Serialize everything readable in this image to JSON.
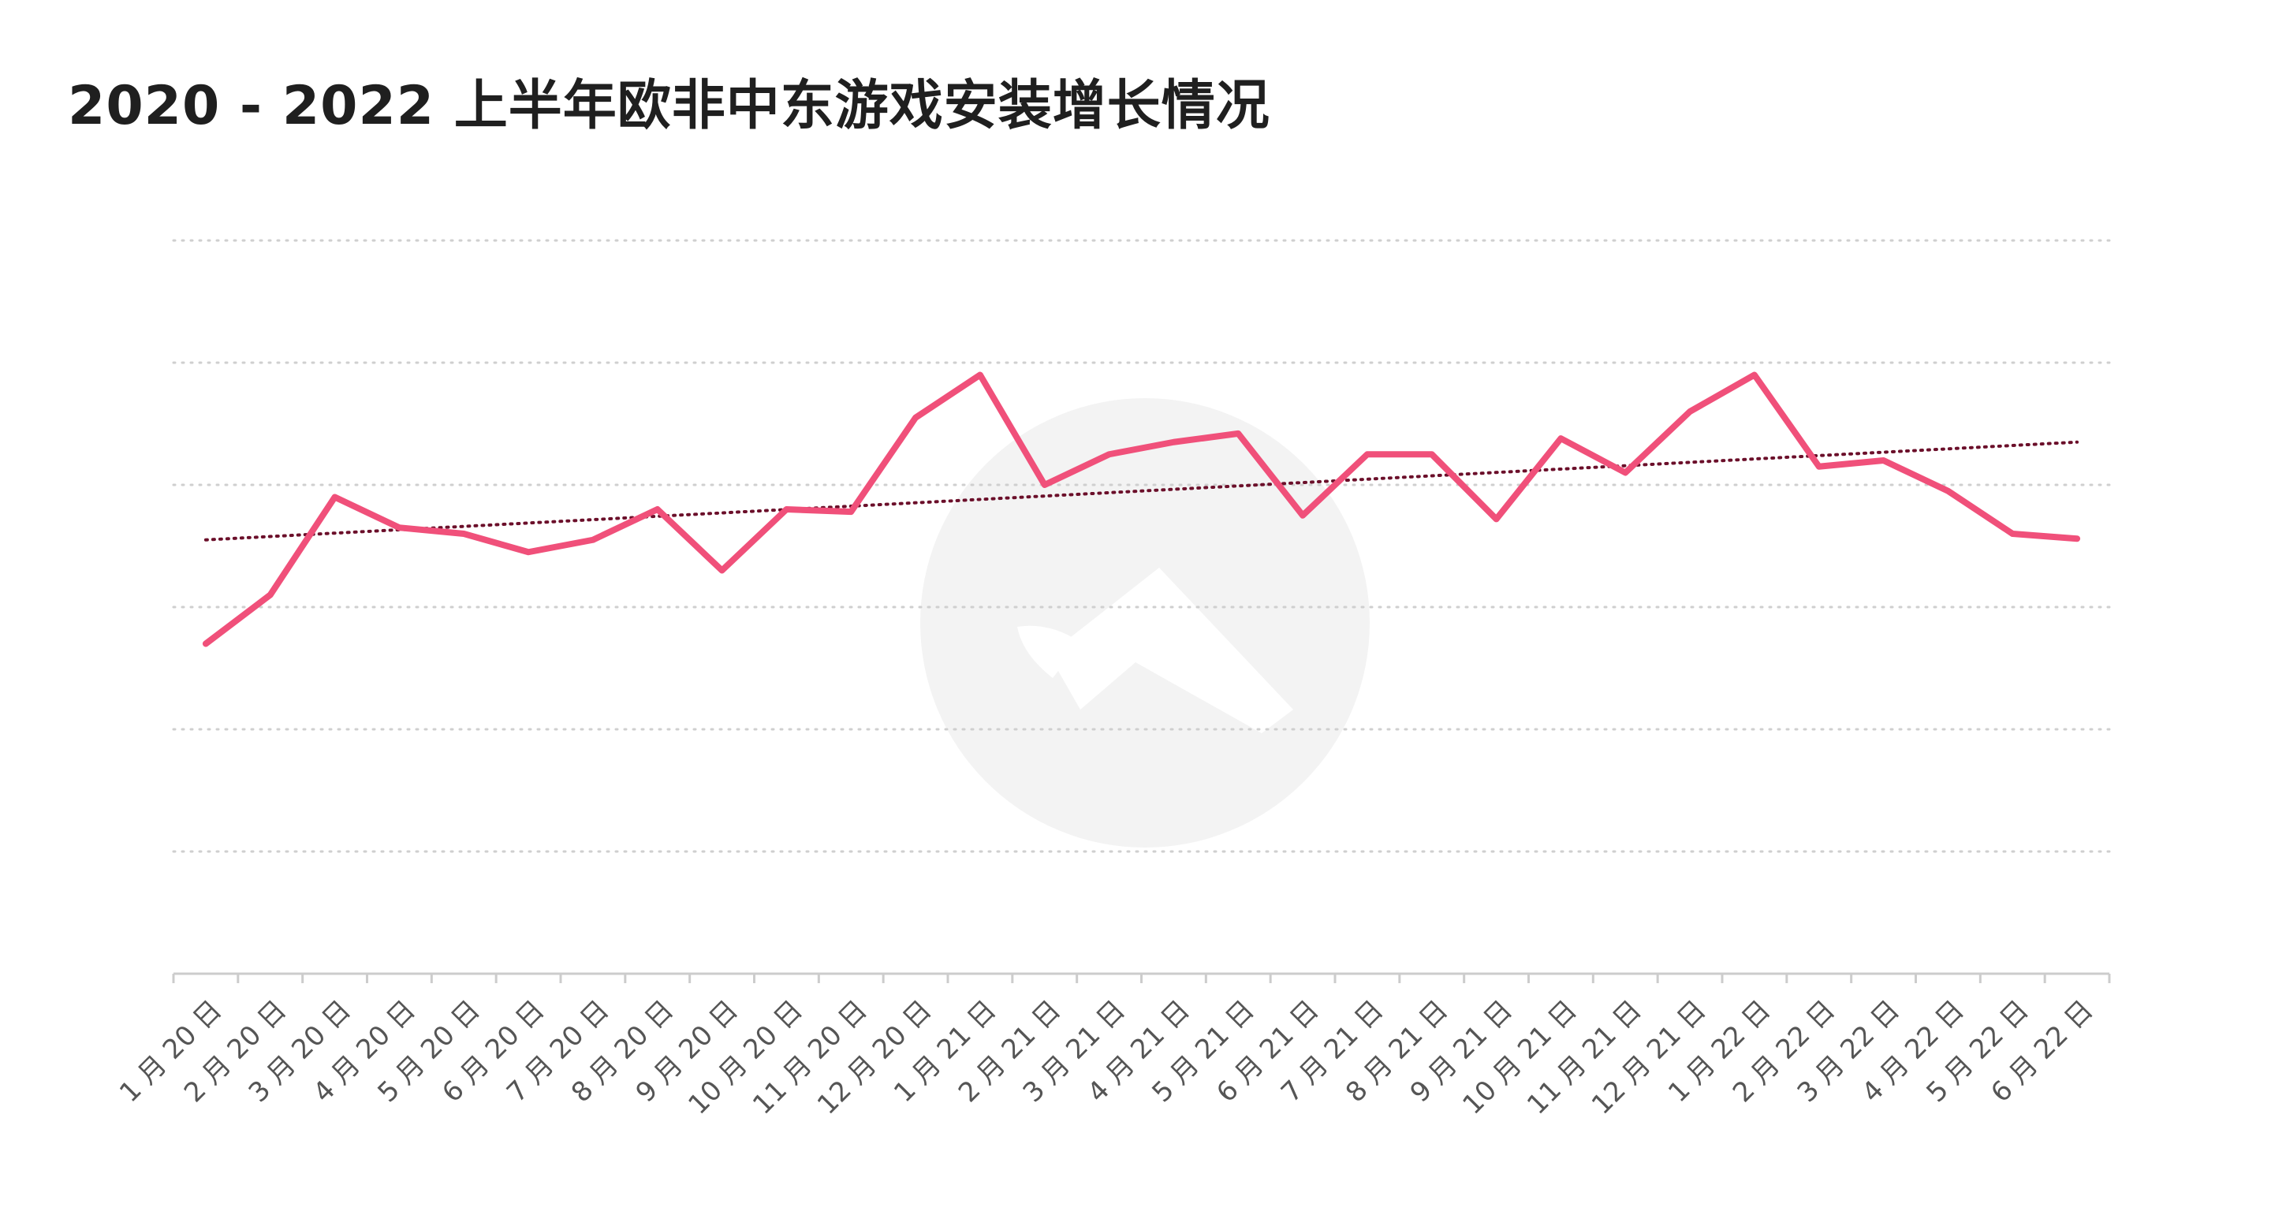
{
  "chart_data": {
    "type": "line",
    "title": "2020 - 2022 上半年欧非中东游戏安装增长情况",
    "xlabel": "",
    "ylabel": "",
    "ylim": [
      0,
      6
    ],
    "grid": true,
    "y_ticks_labeled": false,
    "categories": [
      "1 月 20 日",
      "2 月 20 日",
      "3 月 20 日",
      "4 月 20 日",
      "5 月 20 日",
      "6 月 20 日",
      "7 月 20 日",
      "8 月 20 日",
      "9 月 20 日",
      "10 月 20 日",
      "11 月 20 日",
      "12 月 20 日",
      "1 月 21 日",
      "2 月 21 日",
      "3 月 21 日",
      "4 月 21 日",
      "5 月 21 日",
      "6 月 21 日",
      "7 月 21 日",
      "8 月 21 日",
      "9 月 21 日",
      "10 月 21 日",
      "11 月 21 日",
      "12 月 21 日",
      "1 月 22 日",
      "2 月 22 日",
      "3 月 22 日",
      "4 月 22 日",
      "5 月 22 日",
      "6 月 22 日"
    ],
    "series": [
      {
        "name": "",
        "color": "#f0507a",
        "values": [
          2.7,
          3.1,
          3.9,
          3.65,
          3.6,
          3.45,
          3.55,
          3.8,
          3.3,
          3.8,
          3.78,
          4.55,
          4.9,
          4.0,
          4.25,
          4.35,
          4.42,
          3.75,
          4.25,
          4.25,
          3.72,
          4.38,
          4.1,
          4.6,
          4.9,
          4.15,
          4.2,
          3.95,
          3.6,
          3.56
        ]
      }
    ],
    "trendline": {
      "style": "dotted",
      "color": "#6b0f2a",
      "start": 3.55,
      "end": 4.35
    },
    "watermark": "logo-watermark"
  }
}
